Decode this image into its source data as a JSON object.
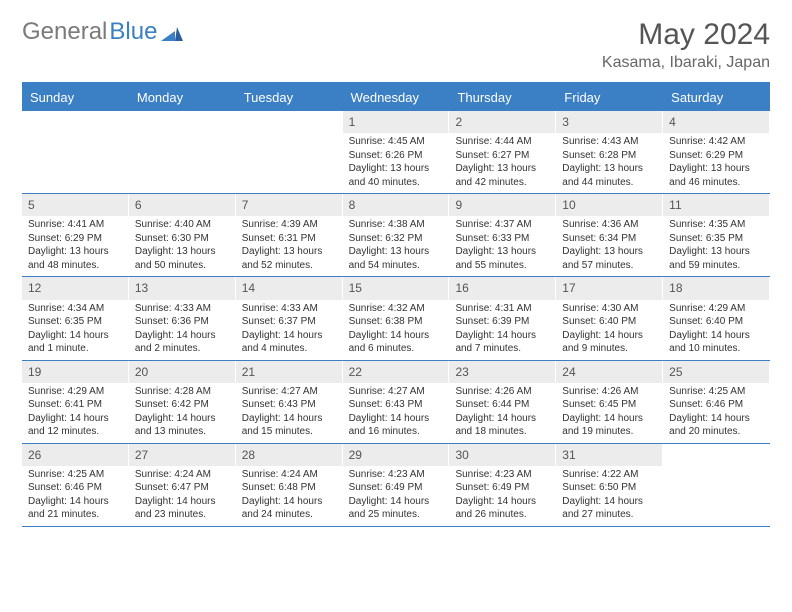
{
  "brand": {
    "part1": "General",
    "part2": "Blue"
  },
  "title": "May 2024",
  "location": "Kasama, Ibaraki, Japan",
  "colors": {
    "accent": "#3b7fc4",
    "header_bg": "#3b7fc4",
    "daynum_bg": "#ececec",
    "text": "#333333",
    "muted": "#666666",
    "logo_gray": "#7a7a7a"
  },
  "day_names": [
    "Sunday",
    "Monday",
    "Tuesday",
    "Wednesday",
    "Thursday",
    "Friday",
    "Saturday"
  ],
  "weeks": [
    [
      {
        "n": "",
        "sr": "",
        "ss": "",
        "dl": ""
      },
      {
        "n": "",
        "sr": "",
        "ss": "",
        "dl": ""
      },
      {
        "n": "",
        "sr": "",
        "ss": "",
        "dl": ""
      },
      {
        "n": "1",
        "sr": "Sunrise: 4:45 AM",
        "ss": "Sunset: 6:26 PM",
        "dl": "Daylight: 13 hours and 40 minutes."
      },
      {
        "n": "2",
        "sr": "Sunrise: 4:44 AM",
        "ss": "Sunset: 6:27 PM",
        "dl": "Daylight: 13 hours and 42 minutes."
      },
      {
        "n": "3",
        "sr": "Sunrise: 4:43 AM",
        "ss": "Sunset: 6:28 PM",
        "dl": "Daylight: 13 hours and 44 minutes."
      },
      {
        "n": "4",
        "sr": "Sunrise: 4:42 AM",
        "ss": "Sunset: 6:29 PM",
        "dl": "Daylight: 13 hours and 46 minutes."
      }
    ],
    [
      {
        "n": "5",
        "sr": "Sunrise: 4:41 AM",
        "ss": "Sunset: 6:29 PM",
        "dl": "Daylight: 13 hours and 48 minutes."
      },
      {
        "n": "6",
        "sr": "Sunrise: 4:40 AM",
        "ss": "Sunset: 6:30 PM",
        "dl": "Daylight: 13 hours and 50 minutes."
      },
      {
        "n": "7",
        "sr": "Sunrise: 4:39 AM",
        "ss": "Sunset: 6:31 PM",
        "dl": "Daylight: 13 hours and 52 minutes."
      },
      {
        "n": "8",
        "sr": "Sunrise: 4:38 AM",
        "ss": "Sunset: 6:32 PM",
        "dl": "Daylight: 13 hours and 54 minutes."
      },
      {
        "n": "9",
        "sr": "Sunrise: 4:37 AM",
        "ss": "Sunset: 6:33 PM",
        "dl": "Daylight: 13 hours and 55 minutes."
      },
      {
        "n": "10",
        "sr": "Sunrise: 4:36 AM",
        "ss": "Sunset: 6:34 PM",
        "dl": "Daylight: 13 hours and 57 minutes."
      },
      {
        "n": "11",
        "sr": "Sunrise: 4:35 AM",
        "ss": "Sunset: 6:35 PM",
        "dl": "Daylight: 13 hours and 59 minutes."
      }
    ],
    [
      {
        "n": "12",
        "sr": "Sunrise: 4:34 AM",
        "ss": "Sunset: 6:35 PM",
        "dl": "Daylight: 14 hours and 1 minute."
      },
      {
        "n": "13",
        "sr": "Sunrise: 4:33 AM",
        "ss": "Sunset: 6:36 PM",
        "dl": "Daylight: 14 hours and 2 minutes."
      },
      {
        "n": "14",
        "sr": "Sunrise: 4:33 AM",
        "ss": "Sunset: 6:37 PM",
        "dl": "Daylight: 14 hours and 4 minutes."
      },
      {
        "n": "15",
        "sr": "Sunrise: 4:32 AM",
        "ss": "Sunset: 6:38 PM",
        "dl": "Daylight: 14 hours and 6 minutes."
      },
      {
        "n": "16",
        "sr": "Sunrise: 4:31 AM",
        "ss": "Sunset: 6:39 PM",
        "dl": "Daylight: 14 hours and 7 minutes."
      },
      {
        "n": "17",
        "sr": "Sunrise: 4:30 AM",
        "ss": "Sunset: 6:40 PM",
        "dl": "Daylight: 14 hours and 9 minutes."
      },
      {
        "n": "18",
        "sr": "Sunrise: 4:29 AM",
        "ss": "Sunset: 6:40 PM",
        "dl": "Daylight: 14 hours and 10 minutes."
      }
    ],
    [
      {
        "n": "19",
        "sr": "Sunrise: 4:29 AM",
        "ss": "Sunset: 6:41 PM",
        "dl": "Daylight: 14 hours and 12 minutes."
      },
      {
        "n": "20",
        "sr": "Sunrise: 4:28 AM",
        "ss": "Sunset: 6:42 PM",
        "dl": "Daylight: 14 hours and 13 minutes."
      },
      {
        "n": "21",
        "sr": "Sunrise: 4:27 AM",
        "ss": "Sunset: 6:43 PM",
        "dl": "Daylight: 14 hours and 15 minutes."
      },
      {
        "n": "22",
        "sr": "Sunrise: 4:27 AM",
        "ss": "Sunset: 6:43 PM",
        "dl": "Daylight: 14 hours and 16 minutes."
      },
      {
        "n": "23",
        "sr": "Sunrise: 4:26 AM",
        "ss": "Sunset: 6:44 PM",
        "dl": "Daylight: 14 hours and 18 minutes."
      },
      {
        "n": "24",
        "sr": "Sunrise: 4:26 AM",
        "ss": "Sunset: 6:45 PM",
        "dl": "Daylight: 14 hours and 19 minutes."
      },
      {
        "n": "25",
        "sr": "Sunrise: 4:25 AM",
        "ss": "Sunset: 6:46 PM",
        "dl": "Daylight: 14 hours and 20 minutes."
      }
    ],
    [
      {
        "n": "26",
        "sr": "Sunrise: 4:25 AM",
        "ss": "Sunset: 6:46 PM",
        "dl": "Daylight: 14 hours and 21 minutes."
      },
      {
        "n": "27",
        "sr": "Sunrise: 4:24 AM",
        "ss": "Sunset: 6:47 PM",
        "dl": "Daylight: 14 hours and 23 minutes."
      },
      {
        "n": "28",
        "sr": "Sunrise: 4:24 AM",
        "ss": "Sunset: 6:48 PM",
        "dl": "Daylight: 14 hours and 24 minutes."
      },
      {
        "n": "29",
        "sr": "Sunrise: 4:23 AM",
        "ss": "Sunset: 6:49 PM",
        "dl": "Daylight: 14 hours and 25 minutes."
      },
      {
        "n": "30",
        "sr": "Sunrise: 4:23 AM",
        "ss": "Sunset: 6:49 PM",
        "dl": "Daylight: 14 hours and 26 minutes."
      },
      {
        "n": "31",
        "sr": "Sunrise: 4:22 AM",
        "ss": "Sunset: 6:50 PM",
        "dl": "Daylight: 14 hours and 27 minutes."
      },
      {
        "n": "",
        "sr": "",
        "ss": "",
        "dl": ""
      }
    ]
  ]
}
